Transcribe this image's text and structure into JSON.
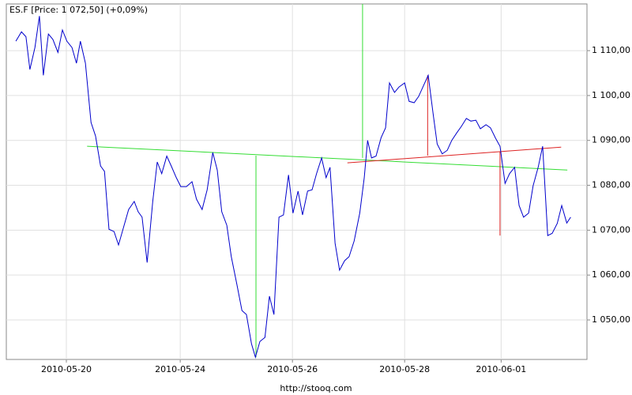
{
  "chart_data": {
    "type": "line",
    "title": "ES.F [Price: 1 072,50] (+0,09%)",
    "source": "http://stooq.com",
    "xlim": [
      -1.07,
      9.28
    ],
    "ylim": [
      1041.2,
      1120.4
    ],
    "xticks": [
      {
        "value": 0,
        "label": "2010-05-20"
      },
      {
        "value": 2.03,
        "label": "2010-05-24"
      },
      {
        "value": 4.03,
        "label": "2010-05-26"
      },
      {
        "value": 6.03,
        "label": "2010-05-28"
      },
      {
        "value": 7.75,
        "label": "2010-06-01"
      }
    ],
    "yticks": [
      {
        "value": 1050,
        "label": "1 050,00"
      },
      {
        "value": 1060,
        "label": "1 060,00"
      },
      {
        "value": 1070,
        "label": "1 070,00"
      },
      {
        "value": 1080,
        "label": "1 080,00"
      },
      {
        "value": 1090,
        "label": "1 090,00"
      },
      {
        "value": 1100,
        "label": "1 100,00"
      },
      {
        "value": 1110,
        "label": "1 110,00"
      }
    ],
    "grid": true,
    "series": [
      {
        "color": "#0000cc",
        "x": [
          -0.9,
          -0.8,
          -0.72,
          -0.65,
          -0.56,
          -0.48,
          -0.41,
          -0.32,
          -0.24,
          -0.15,
          -0.07,
          0.01,
          0.1,
          0.18,
          0.25,
          0.34,
          0.44,
          0.52,
          0.61,
          0.68,
          0.76,
          0.85,
          0.93,
          1.03,
          1.11,
          1.21,
          1.28,
          1.35,
          1.44,
          1.54,
          1.62,
          1.7,
          1.79,
          1.87,
          1.96,
          2.04,
          2.14,
          2.24,
          2.32,
          2.42,
          2.51,
          2.61,
          2.69,
          2.77,
          2.86,
          2.94,
          3.04,
          3.13,
          3.21,
          3.3,
          3.37,
          3.45,
          3.54,
          3.62,
          3.7,
          3.79,
          3.87,
          3.96,
          4.04,
          4.13,
          4.21,
          4.3,
          4.38,
          4.46,
          4.55,
          4.63,
          4.7,
          4.79,
          4.87,
          4.96,
          5.04,
          5.13,
          5.23,
          5.31,
          5.37,
          5.44,
          5.52,
          5.61,
          5.69,
          5.76,
          5.85,
          5.93,
          6.03,
          6.11,
          6.2,
          6.28,
          6.37,
          6.45,
          6.54,
          6.61,
          6.7,
          6.79,
          6.87,
          6.96,
          7.04,
          7.13,
          7.21,
          7.3,
          7.38,
          7.48,
          7.56,
          7.65,
          7.73,
          7.82,
          7.9,
          7.99,
          8.07,
          8.15,
          8.24,
          8.32,
          8.41,
          8.49,
          8.58,
          8.66,
          8.75,
          8.83,
          8.92,
          8.99
        ],
        "values": [
          1112.1,
          1114.2,
          1113.1,
          1105.8,
          1110.7,
          1117.7,
          1104.5,
          1113.7,
          1112.5,
          1109.6,
          1114.6,
          1112.1,
          1110.7,
          1107.2,
          1112.1,
          1107.2,
          1094.0,
          1091.0,
          1084.3,
          1083.1,
          1070.2,
          1069.7,
          1066.7,
          1071.1,
          1074.6,
          1076.4,
          1074.1,
          1072.9,
          1062.8,
          1076.4,
          1085.2,
          1082.6,
          1086.5,
          1084.3,
          1081.7,
          1079.7,
          1079.7,
          1080.8,
          1076.9,
          1074.6,
          1079.0,
          1087.3,
          1083.4,
          1074.1,
          1071.1,
          1064.1,
          1057.9,
          1052.1,
          1051.2,
          1044.7,
          1041.7,
          1045.2,
          1046.1,
          1055.3,
          1051.2,
          1072.9,
          1073.4,
          1082.3,
          1073.8,
          1078.7,
          1073.4,
          1078.7,
          1079.0,
          1082.6,
          1086.1,
          1081.7,
          1084.0,
          1067.1,
          1061.1,
          1063.2,
          1064.1,
          1067.6,
          1073.8,
          1081.7,
          1090.0,
          1086.1,
          1086.5,
          1090.6,
          1092.8,
          1102.8,
          1100.7,
          1101.9,
          1102.8,
          1098.7,
          1098.4,
          1099.8,
          1102.3,
          1104.5,
          1095.7,
          1089.2,
          1087.0,
          1087.8,
          1090.0,
          1091.7,
          1093.1,
          1094.9,
          1094.3,
          1094.5,
          1092.6,
          1093.5,
          1092.8,
          1090.5,
          1088.7,
          1080.4,
          1082.6,
          1084.0,
          1075.5,
          1072.9,
          1073.8,
          1079.9,
          1084.0,
          1088.7,
          1068.8,
          1069.3,
          1071.5,
          1075.5,
          1071.6,
          1072.9
        ]
      }
    ],
    "drawings": [
      {
        "color": "#33dd33",
        "x": [
          0.37,
          8.93
        ],
        "y": [
          1088.7,
          1083.4
        ]
      },
      {
        "color": "#33dd33",
        "x": [
          3.38,
          3.38
        ],
        "y": [
          1086.6,
          1041.7
        ]
      },
      {
        "color": "#33dd33",
        "x": [
          5.28,
          5.28
        ],
        "y": [
          1120.4,
          1086.1
        ]
      },
      {
        "color": "#dd2222",
        "x": [
          5.01,
          8.82
        ],
        "y": [
          1085.0,
          1088.5
        ]
      },
      {
        "color": "#dd2222",
        "x": [
          6.44,
          6.44
        ],
        "y": [
          1104.5,
          1086.6
        ]
      },
      {
        "color": "#dd2222",
        "x": [
          7.73,
          7.73
        ],
        "y": [
          1087.5,
          1068.8
        ]
      }
    ]
  }
}
